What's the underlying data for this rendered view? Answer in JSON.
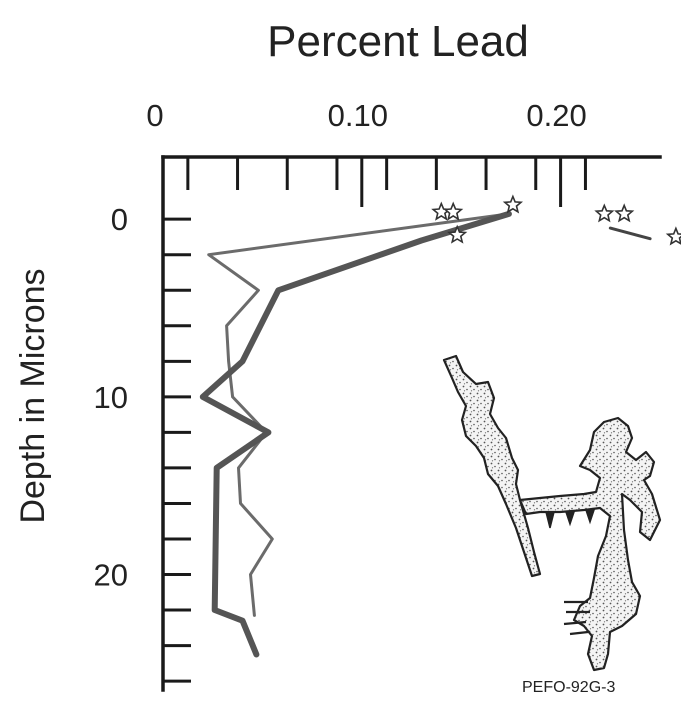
{
  "chart_data": {
    "type": "line",
    "title": "Percent Lead",
    "xlabel": "",
    "ylabel": "Depth in Microns",
    "xlim": [
      0,
      0.25
    ],
    "ylim": [
      -3.5,
      26.5
    ],
    "y_inverted": true,
    "x_axis_position": "top",
    "x_tick_labels": [
      {
        "value": 0,
        "label": "0"
      },
      {
        "value": 0.1,
        "label": "0.10"
      },
      {
        "value": 0.2,
        "label": "0.20"
      }
    ],
    "x_minor_ticks": [
      0.0125,
      0.0375,
      0.0625,
      0.0875,
      0.1125,
      0.1375,
      0.1625,
      0.1875,
      0.2125
    ],
    "y_tick_labels": [
      {
        "value": 0,
        "label": "0"
      },
      {
        "value": 10,
        "label": "10"
      },
      {
        "value": 20,
        "label": "20"
      }
    ],
    "y_minor_ticks": [
      0,
      2,
      4,
      6,
      8,
      10,
      12,
      14,
      16,
      18,
      20,
      22,
      24,
      26
    ],
    "grid": false,
    "legend": "none",
    "series": [
      {
        "style": "thin",
        "color": "#6b6b6b",
        "points": [
          {
            "x": 0.174,
            "y": -0.3
          },
          {
            "x": 0.023,
            "y": 2
          },
          {
            "x": 0.048,
            "y": 4
          },
          {
            "x": 0.032,
            "y": 6
          },
          {
            "x": 0.033,
            "y": 8
          },
          {
            "x": 0.035,
            "y": 10
          },
          {
            "x": 0.052,
            "y": 12
          },
          {
            "x": 0.038,
            "y": 14
          },
          {
            "x": 0.039,
            "y": 16
          },
          {
            "x": 0.055,
            "y": 18
          },
          {
            "x": 0.044,
            "y": 20
          },
          {
            "x": 0.046,
            "y": 22.3
          }
        ]
      },
      {
        "style": "thick",
        "color": "#555555",
        "points": [
          {
            "x": 0.174,
            "y": -0.3
          },
          {
            "x": 0.13,
            "y": 1.2
          },
          {
            "x": 0.058,
            "y": 4
          },
          {
            "x": 0.04,
            "y": 8
          },
          {
            "x": 0.02,
            "y": 10
          },
          {
            "x": 0.053,
            "y": 12
          },
          {
            "x": 0.027,
            "y": 14
          },
          {
            "x": 0.026,
            "y": 22
          },
          {
            "x": 0.04,
            "y": 22.6
          },
          {
            "x": 0.047,
            "y": 24.5
          }
        ]
      },
      {
        "style": "thin",
        "color": "#444444",
        "points": [
          {
            "x": 0.225,
            "y": 0.5
          },
          {
            "x": 0.245,
            "y": 1.1
          }
        ]
      }
    ],
    "star_markers": [
      {
        "x": 0.14,
        "y": -0.4
      },
      {
        "x": 0.146,
        "y": -0.4
      },
      {
        "x": 0.148,
        "y": 0.9
      },
      {
        "x": 0.176,
        "y": -0.8
      },
      {
        "x": 0.222,
        "y": -0.3
      },
      {
        "x": 0.232,
        "y": -0.3
      },
      {
        "x": 0.258,
        "y": 1.0
      }
    ]
  },
  "figure": {
    "caption": "PEFO-92G-3",
    "inset_description": "sketch of a rock varnish cross-section"
  },
  "colors": {
    "axis": "#1a1a1a",
    "text": "#222222",
    "sketch_outline": "#222222",
    "sketch_fill": "#f4f4f4"
  }
}
